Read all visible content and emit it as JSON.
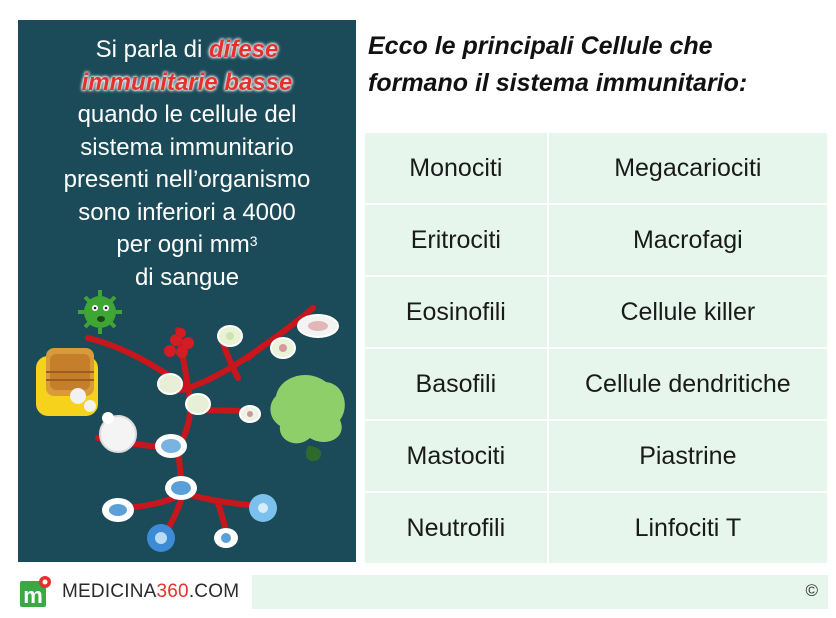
{
  "left_panel": {
    "intro": "Si parla di",
    "highlight_1": "difese",
    "highlight_2": "immunitarie basse",
    "line_3": "quando le cellule del",
    "line_4": "sistema immunitario",
    "line_5": "presenti nell’organismo",
    "line_6": "sono inferiori a 4000",
    "line_7_main": "per ogni mm",
    "line_7_sup": "3",
    "line_8": "di sangue"
  },
  "title": {
    "line_1": "Ecco le principali Cellule che",
    "line_2": "formano il sistema immunitario:"
  },
  "table": {
    "rows": [
      [
        "Monociti",
        "Megacariociti"
      ],
      [
        "Eritrociti",
        "Macrofagi"
      ],
      [
        "Eosinofili",
        "Cellule killer"
      ],
      [
        "Basofili",
        "Cellule dendritiche"
      ],
      [
        "Mastociti",
        "Piastrine"
      ],
      [
        "Neutrofili",
        "Linfociti T"
      ]
    ]
  },
  "footer": {
    "logo_letter": "m",
    "site_prefix": "MEDICINA",
    "site_number": "360",
    "site_suffix": ".COM",
    "copyright": "©"
  },
  "colors": {
    "panel_bg": "#1b4a58",
    "highlight_red": "#e3312e",
    "table_bg": "#e6f6ec",
    "logo_green": "#3aa845"
  }
}
